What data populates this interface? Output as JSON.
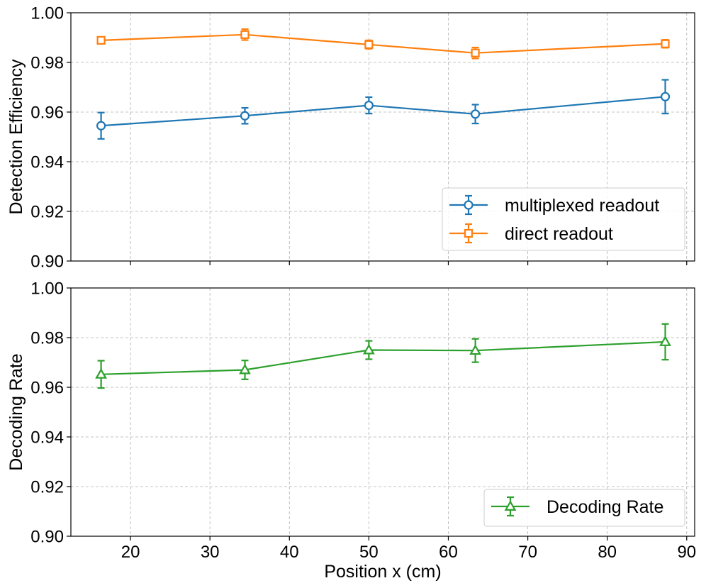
{
  "chart_data": [
    {
      "type": "line",
      "ylabel": "Detection Efficiency",
      "xlim": [
        12.5,
        91
      ],
      "ylim": [
        0.9,
        1.0
      ],
      "yticks": [
        "0.90",
        "0.92",
        "0.94",
        "0.96",
        "0.98",
        "1.00"
      ],
      "yticks_values": [
        0.9,
        0.92,
        0.94,
        0.96,
        0.98,
        1.0
      ],
      "xticks_values": [
        20,
        30,
        40,
        50,
        60,
        70,
        80,
        90
      ],
      "show_xtick_labels": false,
      "grid": true,
      "legend_position": "lower-right",
      "series": [
        {
          "name": "multiplexed readout",
          "color": "#1f77b4",
          "marker": "circle",
          "x": [
            16.3,
            34.4,
            50.0,
            63.4,
            87.3
          ],
          "y": [
            0.9545,
            0.9585,
            0.9627,
            0.9592,
            0.9662
          ],
          "yerr": [
            0.0053,
            0.0032,
            0.0033,
            0.0038,
            0.0068
          ]
        },
        {
          "name": "direct readout",
          "color": "#ff7f0e",
          "marker": "square",
          "x": [
            16.3,
            34.4,
            50.0,
            63.4,
            87.3
          ],
          "y": [
            0.9889,
            0.9912,
            0.9872,
            0.9838,
            0.9875
          ],
          "yerr": [
            0.0013,
            0.0022,
            0.0017,
            0.0022,
            0.0016
          ]
        }
      ]
    },
    {
      "type": "line",
      "ylabel": "Decoding Rate",
      "xlabel": "Position x (cm)",
      "xlim": [
        12.5,
        91
      ],
      "ylim": [
        0.9,
        1.0
      ],
      "xticks": [
        "20",
        "30",
        "40",
        "50",
        "60",
        "70",
        "80",
        "90"
      ],
      "xticks_values": [
        20,
        30,
        40,
        50,
        60,
        70,
        80,
        90
      ],
      "yticks": [
        "0.90",
        "0.92",
        "0.94",
        "0.96",
        "0.98",
        "1.00"
      ],
      "yticks_values": [
        0.9,
        0.92,
        0.94,
        0.96,
        0.98,
        1.0
      ],
      "grid": true,
      "legend_position": "lower-right",
      "series": [
        {
          "name": "Decoding Rate",
          "color": "#2ca02c",
          "marker": "triangle",
          "x": [
            16.3,
            34.4,
            50.0,
            63.4,
            87.3
          ],
          "y": [
            0.9652,
            0.967,
            0.975,
            0.9748,
            0.9783
          ],
          "yerr": [
            0.0055,
            0.0038,
            0.0037,
            0.0047,
            0.0072
          ]
        }
      ]
    }
  ]
}
